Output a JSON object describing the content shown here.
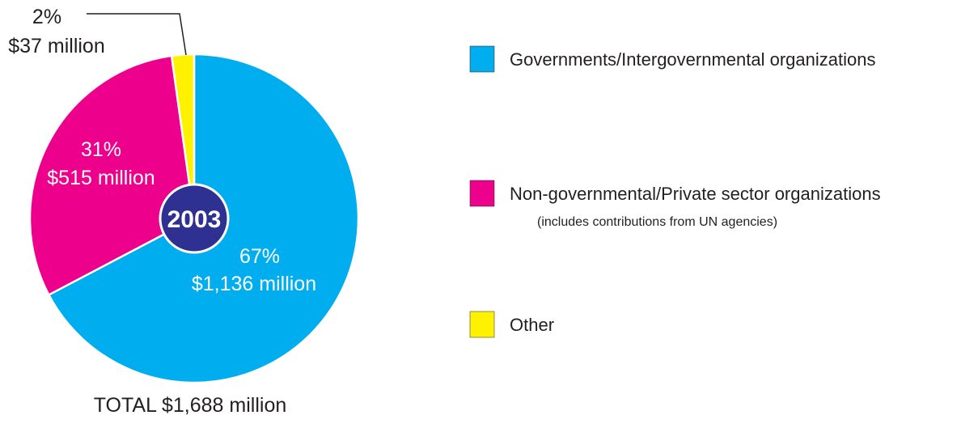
{
  "chart_data": {
    "type": "pie",
    "center_label": "2003",
    "total_label": "TOTAL $1,688 million",
    "slices": [
      {
        "name": "Governments/Intergovernmental organizations",
        "note": "",
        "value": 1136,
        "percent_label": "67%",
        "amount_label": "$1,136 million",
        "color": "#00aeef"
      },
      {
        "name": "Non-governmental/Private sector organizations",
        "note": "(includes contributions from UN agencies)",
        "value": 515,
        "percent_label": "31%",
        "amount_label": "$515 million",
        "color": "#ec008c"
      },
      {
        "name": "Other",
        "note": "",
        "value": 37,
        "percent_label": "2%",
        "amount_label": "$37 million",
        "color": "#fff200"
      }
    ],
    "legend_position": "right"
  }
}
